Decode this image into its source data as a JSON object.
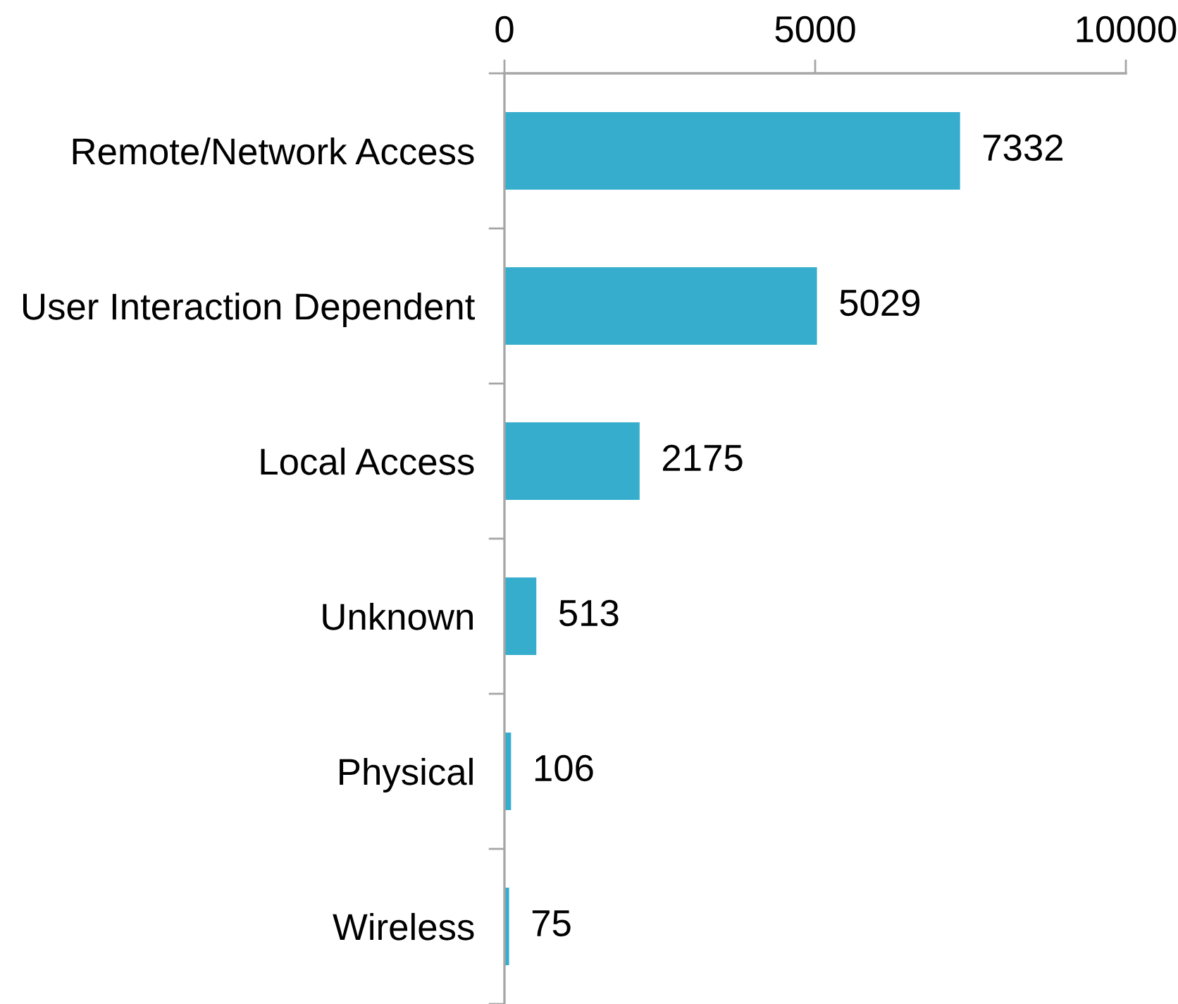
{
  "chart_data": {
    "type": "bar",
    "orientation": "horizontal",
    "categories": [
      "Remote/Network Access",
      "User Interaction Dependent",
      "Local Access",
      "Unknown",
      "Physical",
      "Wireless"
    ],
    "values": [
      7332,
      5029,
      2175,
      513,
      106,
      75
    ],
    "color": "#36adcd",
    "xlim": [
      0,
      10000
    ],
    "xticks": [
      0,
      5000,
      10000
    ],
    "data_labels": true,
    "grid": false,
    "legend": false
  }
}
